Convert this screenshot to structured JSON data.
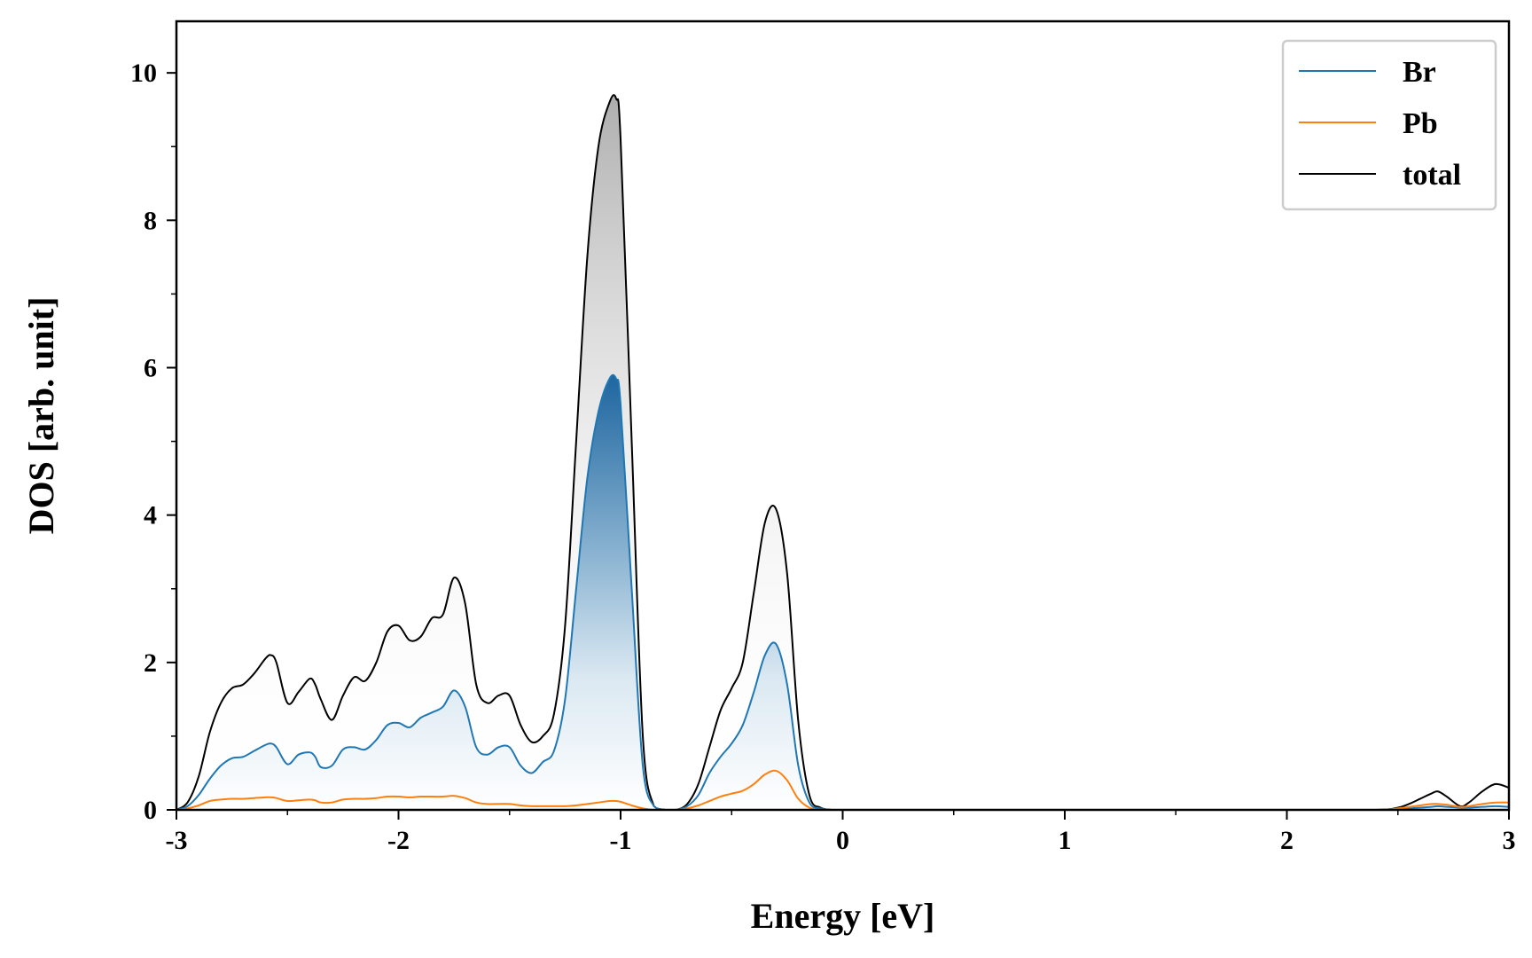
{
  "chart_data": {
    "type": "line",
    "xlabel": "Energy [eV]",
    "ylabel": "DOS [arb. unit]",
    "xlim": [
      -3,
      3
    ],
    "ylim": [
      0,
      10.7
    ],
    "x_ticks": [
      -3,
      -2,
      -1,
      0,
      1,
      2,
      3
    ],
    "y_ticks": [
      0,
      2,
      4,
      6,
      8,
      10
    ],
    "legend_position": "top-right",
    "grid": false,
    "x": [
      -3.0,
      -2.95,
      -2.9,
      -2.85,
      -2.8,
      -2.75,
      -2.7,
      -2.65,
      -2.6,
      -2.575,
      -2.55,
      -2.5,
      -2.45,
      -2.4,
      -2.375,
      -2.35,
      -2.3,
      -2.25,
      -2.2,
      -2.15,
      -2.1,
      -2.05,
      -2.0,
      -1.95,
      -1.9,
      -1.85,
      -1.8,
      -1.75,
      -1.7,
      -1.65,
      -1.6,
      -1.55,
      -1.5,
      -1.45,
      -1.4,
      -1.35,
      -1.3,
      -1.25,
      -1.2,
      -1.15,
      -1.1,
      -1.05,
      -1.02,
      -1.0,
      -0.95,
      -0.9,
      -0.85,
      -0.8,
      -0.75,
      -0.7,
      -0.65,
      -0.6,
      -0.55,
      -0.5,
      -0.45,
      -0.4,
      -0.35,
      -0.3,
      -0.25,
      -0.2,
      -0.15,
      -0.1,
      -0.05,
      0.0,
      0.5,
      1.0,
      1.5,
      2.0,
      2.4,
      2.5,
      2.55,
      2.6,
      2.65,
      2.68,
      2.72,
      2.78,
      2.82,
      2.88,
      2.94,
      3.0
    ],
    "series": [
      {
        "name": "Br",
        "color": "#1f77b4",
        "values": [
          0.0,
          0.05,
          0.2,
          0.42,
          0.6,
          0.7,
          0.72,
          0.8,
          0.88,
          0.9,
          0.85,
          0.62,
          0.75,
          0.78,
          0.72,
          0.58,
          0.6,
          0.82,
          0.85,
          0.82,
          0.95,
          1.15,
          1.18,
          1.12,
          1.25,
          1.32,
          1.4,
          1.62,
          1.4,
          0.85,
          0.75,
          0.85,
          0.85,
          0.6,
          0.5,
          0.65,
          0.8,
          1.5,
          3.0,
          4.5,
          5.4,
          5.85,
          5.85,
          5.5,
          3.0,
          0.6,
          0.05,
          0.0,
          0.0,
          0.05,
          0.2,
          0.5,
          0.72,
          0.9,
          1.15,
          1.6,
          2.1,
          2.25,
          1.7,
          0.6,
          0.1,
          0.02,
          0.0,
          0.0,
          0.0,
          0.0,
          0.0,
          0.0,
          0.0,
          0.01,
          0.02,
          0.03,
          0.04,
          0.05,
          0.04,
          0.03,
          0.03,
          0.04,
          0.05,
          0.04
        ]
      },
      {
        "name": "Pb",
        "color": "#ff7f0e",
        "values": [
          0.0,
          0.02,
          0.06,
          0.12,
          0.14,
          0.15,
          0.15,
          0.16,
          0.17,
          0.17,
          0.16,
          0.12,
          0.13,
          0.14,
          0.13,
          0.1,
          0.1,
          0.14,
          0.15,
          0.15,
          0.16,
          0.18,
          0.18,
          0.17,
          0.18,
          0.18,
          0.18,
          0.19,
          0.16,
          0.1,
          0.08,
          0.08,
          0.08,
          0.06,
          0.05,
          0.05,
          0.05,
          0.05,
          0.06,
          0.08,
          0.1,
          0.12,
          0.12,
          0.11,
          0.06,
          0.02,
          0.0,
          0.0,
          0.0,
          0.02,
          0.06,
          0.12,
          0.18,
          0.22,
          0.26,
          0.35,
          0.48,
          0.53,
          0.4,
          0.15,
          0.03,
          0.0,
          0.0,
          0.0,
          0.0,
          0.0,
          0.0,
          0.0,
          0.0,
          0.02,
          0.04,
          0.06,
          0.08,
          0.08,
          0.07,
          0.04,
          0.05,
          0.08,
          0.1,
          0.1
        ]
      },
      {
        "name": "total",
        "color": "#000000",
        "values": [
          0.0,
          0.1,
          0.45,
          1.05,
          1.45,
          1.65,
          1.7,
          1.85,
          2.05,
          2.1,
          2.0,
          1.45,
          1.6,
          1.78,
          1.7,
          1.5,
          1.22,
          1.55,
          1.8,
          1.75,
          2.0,
          2.42,
          2.5,
          2.3,
          2.35,
          2.6,
          2.65,
          3.15,
          2.8,
          1.7,
          1.45,
          1.55,
          1.55,
          1.15,
          0.92,
          1.0,
          1.3,
          2.5,
          5.0,
          7.5,
          9.0,
          9.6,
          9.65,
          9.1,
          5.0,
          1.0,
          0.05,
          0.0,
          0.0,
          0.08,
          0.35,
          0.85,
          1.35,
          1.65,
          2.0,
          2.95,
          3.9,
          4.08,
          3.2,
          1.2,
          0.2,
          0.03,
          0.0,
          0.0,
          0.0,
          0.0,
          0.0,
          0.0,
          0.0,
          0.03,
          0.08,
          0.15,
          0.22,
          0.25,
          0.18,
          0.05,
          0.1,
          0.25,
          0.35,
          0.3
        ]
      }
    ]
  }
}
